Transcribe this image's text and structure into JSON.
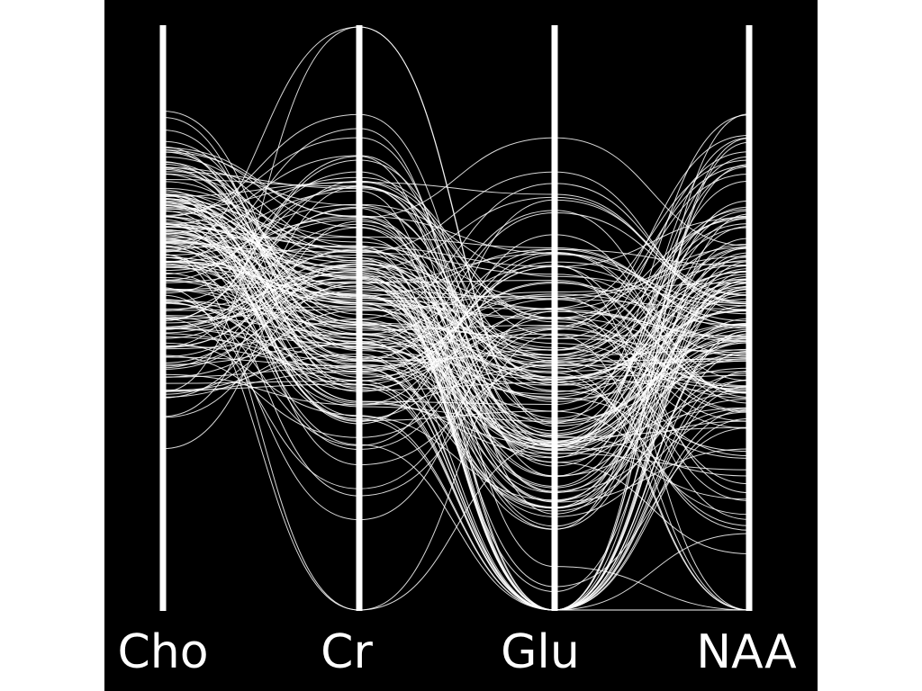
{
  "chart_data": {
    "type": "parallel-coordinates",
    "title": "",
    "axes": [
      {
        "label": "Cho"
      },
      {
        "label": "Cr"
      },
      {
        "label": "Glu"
      },
      {
        "label": "NAA"
      }
    ],
    "line_color": "#ffffff",
    "background_color": "#000000",
    "axis_color": "#ffffff",
    "grid": false,
    "legend": "none"
  }
}
